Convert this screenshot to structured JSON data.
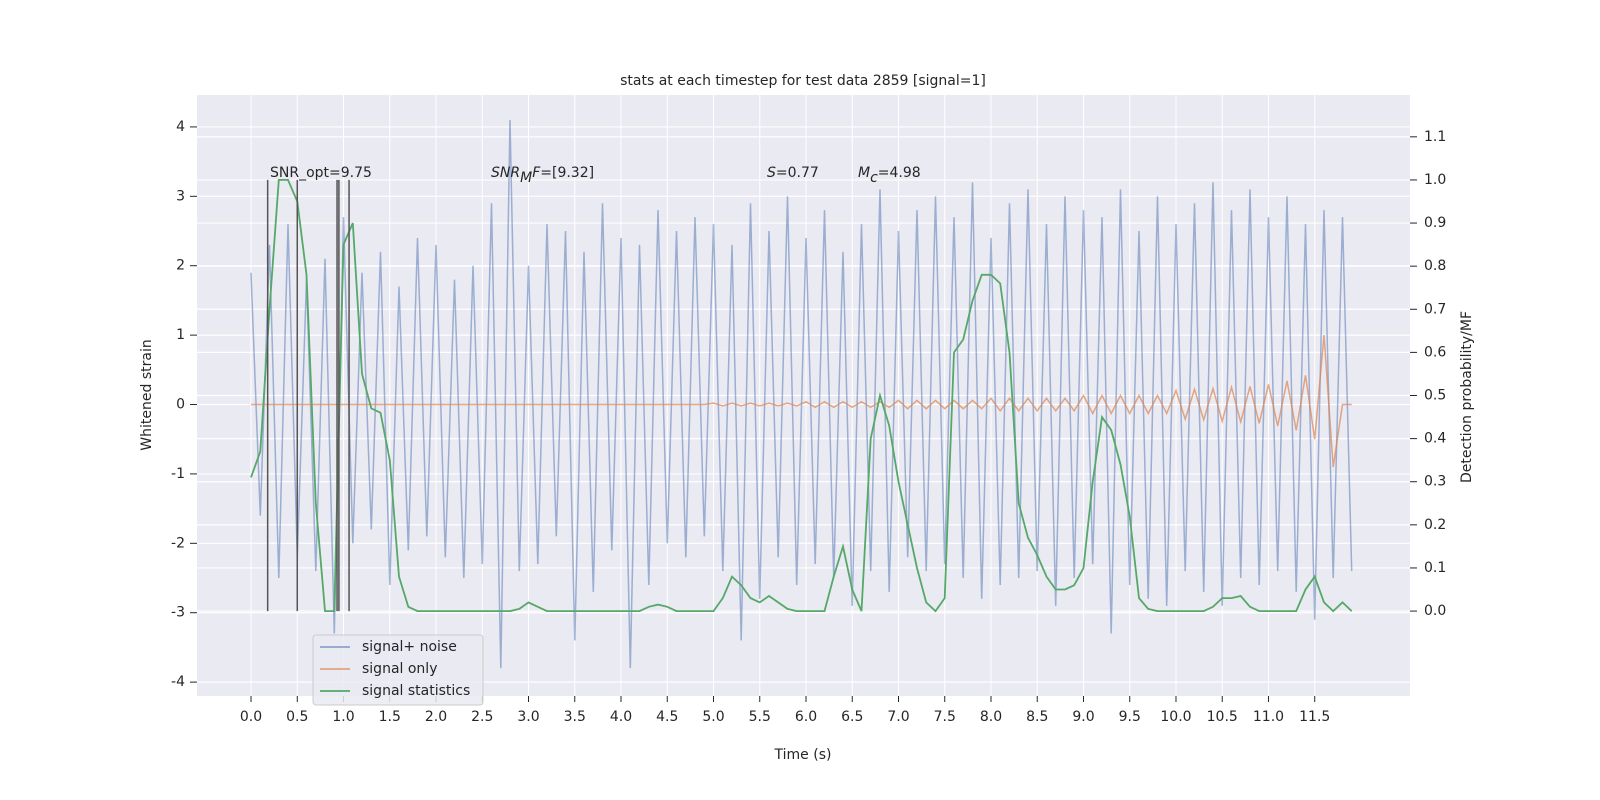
{
  "chart_data": {
    "type": "line",
    "title": "stats at each timestep for test data 2859 [signal=1]",
    "xlabel": "Time (s)",
    "ylabel": "Whitened strain",
    "y2label": "Detection probability/MF",
    "x": [
      0.0,
      0.1,
      0.2,
      0.3,
      0.4,
      0.5,
      0.6,
      0.7,
      0.8,
      0.9,
      1.0,
      1.1,
      1.2,
      1.3,
      1.4,
      1.5,
      1.6,
      1.7,
      1.8,
      1.9,
      2.0,
      2.1,
      2.2,
      2.3,
      2.4,
      2.5,
      2.6,
      2.7,
      2.8,
      2.9,
      3.0,
      3.1,
      3.2,
      3.3,
      3.4,
      3.5,
      3.6,
      3.7,
      3.8,
      3.9,
      4.0,
      4.1,
      4.2,
      4.3,
      4.4,
      4.5,
      4.6,
      4.7,
      4.8,
      4.9,
      5.0,
      5.1,
      5.2,
      5.3,
      5.4,
      5.5,
      5.6,
      5.7,
      5.8,
      5.9,
      6.0,
      6.1,
      6.2,
      6.3,
      6.4,
      6.5,
      6.6,
      6.7,
      6.8,
      6.9,
      7.0,
      7.1,
      7.2,
      7.3,
      7.4,
      7.5,
      7.6,
      7.7,
      7.8,
      7.9,
      8.0,
      8.1,
      8.2,
      8.3,
      8.4,
      8.5,
      8.6,
      8.7,
      8.8,
      8.9,
      9.0,
      9.1,
      9.2,
      9.3,
      9.4,
      9.5,
      9.6,
      9.7,
      9.8,
      9.9,
      10.0,
      10.1,
      10.2,
      10.3,
      10.4,
      10.5,
      10.6,
      10.7,
      10.8,
      10.9,
      11.0,
      11.1,
      11.2,
      11.3,
      11.4,
      11.5,
      11.6,
      11.7,
      11.8,
      11.9
    ],
    "series": [
      {
        "name": "signal+ noise",
        "color": "#4c72b0",
        "values": [
          1.9,
          -1.6,
          2.3,
          -2.5,
          2.6,
          -2.2,
          1.8,
          -2.4,
          2.1,
          -3.3,
          2.7,
          -2.0,
          1.9,
          -1.8,
          2.2,
          -2.6,
          1.7,
          -2.1,
          2.4,
          -1.9,
          2.3,
          -2.2,
          1.8,
          -2.5,
          2.0,
          -2.3,
          2.9,
          -3.8,
          4.1,
          -2.4,
          2.0,
          -2.3,
          2.6,
          -1.9,
          2.5,
          -3.4,
          2.2,
          -2.7,
          2.9,
          -2.1,
          2.4,
          -3.8,
          2.3,
          -2.6,
          2.8,
          -2.0,
          2.5,
          -2.2,
          2.7,
          -1.9,
          2.6,
          -2.4,
          2.3,
          -3.4,
          2.9,
          -2.8,
          2.5,
          -2.2,
          3.0,
          -2.6,
          2.4,
          -2.3,
          2.8,
          -2.5,
          2.2,
          -2.9,
          2.6,
          -2.4,
          3.1,
          -2.7,
          2.5,
          -2.2,
          2.8,
          -2.4,
          3.0,
          -2.3,
          2.7,
          -2.5,
          3.2,
          -2.8,
          2.4,
          -2.6,
          2.9,
          -2.5,
          3.1,
          -2.4,
          2.6,
          -2.9,
          3.0,
          -2.5,
          2.8,
          -2.3,
          2.7,
          -3.3,
          3.1,
          -2.6,
          2.5,
          -2.8,
          3.0,
          -2.9,
          2.6,
          -2.4,
          2.9,
          -2.7,
          3.2,
          -2.9,
          2.8,
          -2.5,
          3.1,
          -2.6,
          2.7,
          -2.4,
          3.0,
          -2.7,
          2.6,
          -3.1,
          2.8,
          -2.5,
          2.7,
          -2.4
        ]
      },
      {
        "name": "signal only",
        "color": "#dd8452",
        "values": [
          0,
          0,
          0,
          0,
          0,
          0,
          0,
          0,
          0,
          0,
          0,
          0,
          0,
          0,
          0,
          0,
          0,
          0,
          0,
          0,
          0,
          0,
          0,
          0,
          0,
          0,
          0,
          0,
          0,
          0,
          0,
          0,
          0,
          0,
          0,
          0,
          0,
          0,
          0,
          0,
          0,
          0,
          0,
          0,
          0,
          0,
          0,
          0,
          0,
          0,
          0.02,
          -0.02,
          0.02,
          -0.02,
          0.02,
          -0.02,
          0.02,
          -0.02,
          0.02,
          -0.02,
          0.04,
          -0.04,
          0.04,
          -0.04,
          0.04,
          -0.04,
          0.04,
          -0.04,
          0.04,
          -0.04,
          0.06,
          -0.06,
          0.06,
          -0.06,
          0.06,
          -0.06,
          0.06,
          -0.06,
          0.06,
          -0.06,
          0.09,
          -0.09,
          0.09,
          -0.09,
          0.09,
          -0.09,
          0.09,
          -0.09,
          0.09,
          -0.09,
          0.13,
          -0.13,
          0.13,
          -0.13,
          0.13,
          -0.13,
          0.13,
          -0.13,
          0.13,
          -0.13,
          0.2,
          -0.21,
          0.22,
          -0.22,
          0.23,
          -0.24,
          0.25,
          -0.25,
          0.26,
          -0.27,
          0.29,
          -0.31,
          0.34,
          -0.37,
          0.42,
          -0.5,
          1.0,
          -0.9,
          0,
          0
        ]
      },
      {
        "name": "signal statistics",
        "color": "#55a868",
        "axis": "y2",
        "values": [
          0.31,
          0.37,
          0.7,
          1.0,
          1.0,
          0.95,
          0.78,
          0.25,
          0.0,
          0.0,
          0.85,
          0.9,
          0.55,
          0.47,
          0.46,
          0.35,
          0.08,
          0.01,
          0.0,
          0.0,
          0.0,
          0.0,
          0.0,
          0.0,
          0.0,
          0.0,
          0.0,
          0.0,
          0.0,
          0.005,
          0.02,
          0.01,
          0.0,
          0.0,
          0.0,
          0.0,
          0.0,
          0.0,
          0.0,
          0.0,
          0.0,
          0.0,
          0.0,
          0.01,
          0.015,
          0.01,
          0.0,
          0.0,
          0.0,
          0.0,
          0.0,
          0.03,
          0.08,
          0.06,
          0.03,
          0.02,
          0.035,
          0.02,
          0.005,
          0.0,
          0.0,
          0.0,
          0.0,
          0.08,
          0.15,
          0.05,
          0.0,
          0.4,
          0.5,
          0.43,
          0.3,
          0.2,
          0.1,
          0.02,
          0.0,
          0.03,
          0.6,
          0.63,
          0.72,
          0.78,
          0.78,
          0.76,
          0.6,
          0.25,
          0.17,
          0.13,
          0.08,
          0.05,
          0.05,
          0.06,
          0.1,
          0.3,
          0.45,
          0.42,
          0.34,
          0.22,
          0.03,
          0.005,
          0.0,
          0.0,
          0.0,
          0.0,
          0.0,
          0.0,
          0.01,
          0.03,
          0.03,
          0.035,
          0.01,
          0.0,
          0.0,
          0.0,
          0.0,
          0.0,
          0.05,
          0.08,
          0.02,
          0.0,
          0.02,
          0.0
        ]
      }
    ],
    "vlines": {
      "x": [
        0.18,
        0.5,
        0.93,
        0.95,
        1.06
      ],
      "ymin": 0,
      "ymax": 1,
      "axis": "y2",
      "color": "#555555"
    },
    "annotations": [
      "SNR_opt=9.75",
      [
        "SNR",
        "M",
        "F",
        "=[9.32]"
      ],
      [
        "S",
        "=0.77"
      ],
      [
        "M",
        "c",
        "=4.98"
      ]
    ],
    "xlim": [
      -0.584,
      12.53
    ],
    "ylim": [
      -4.2,
      4.46
    ],
    "y2lim": [
      -0.197,
      1.197
    ],
    "xticks": [
      {
        "value": 0,
        "label": "0.0"
      },
      {
        "value": 0.5,
        "label": "0.5"
      },
      {
        "value": 1,
        "label": "1.0"
      },
      {
        "value": 1.5,
        "label": "1.5"
      },
      {
        "value": 2,
        "label": "2.0"
      },
      {
        "value": 2.5,
        "label": "2.5"
      },
      {
        "value": 3,
        "label": "3.0"
      },
      {
        "value": 3.5,
        "label": "3.5"
      },
      {
        "value": 4,
        "label": "4.0"
      },
      {
        "value": 4.5,
        "label": "4.5"
      },
      {
        "value": 5,
        "label": "5.0"
      },
      {
        "value": 5.5,
        "label": "5.5"
      },
      {
        "value": 6,
        "label": "6.0"
      },
      {
        "value": 6.5,
        "label": "6.5"
      },
      {
        "value": 7,
        "label": "7.0"
      },
      {
        "value": 7.5,
        "label": "7.5"
      },
      {
        "value": 8,
        "label": "8.0"
      },
      {
        "value": 8.5,
        "label": "8.5"
      },
      {
        "value": 9,
        "label": "9.0"
      },
      {
        "value": 9.5,
        "label": "9.5"
      },
      {
        "value": 10,
        "label": "10.0"
      },
      {
        "value": 10.5,
        "label": "10.5"
      },
      {
        "value": 11,
        "label": "11.0"
      },
      {
        "value": 11.5,
        "label": "11.5"
      }
    ],
    "yticks": [
      -4,
      -3,
      -2,
      -1,
      0,
      1,
      2,
      3,
      4
    ],
    "y2ticks": [
      {
        "value": 0,
        "label": "0.0"
      },
      {
        "value": 0.1,
        "label": "0.1"
      },
      {
        "value": 0.2,
        "label": "0.2"
      },
      {
        "value": 0.3,
        "label": "0.3"
      },
      {
        "value": 0.4,
        "label": "0.4"
      },
      {
        "value": 0.5,
        "label": "0.5"
      },
      {
        "value": 0.6,
        "label": "0.6"
      },
      {
        "value": 0.7,
        "label": "0.7"
      },
      {
        "value": 0.8,
        "label": "0.8"
      },
      {
        "value": 0.9,
        "label": "0.9"
      },
      {
        "value": 1.0,
        "label": "1.0"
      },
      {
        "value": 1.1,
        "label": "1.1"
      }
    ],
    "grid": true,
    "legend": "lower left"
  }
}
